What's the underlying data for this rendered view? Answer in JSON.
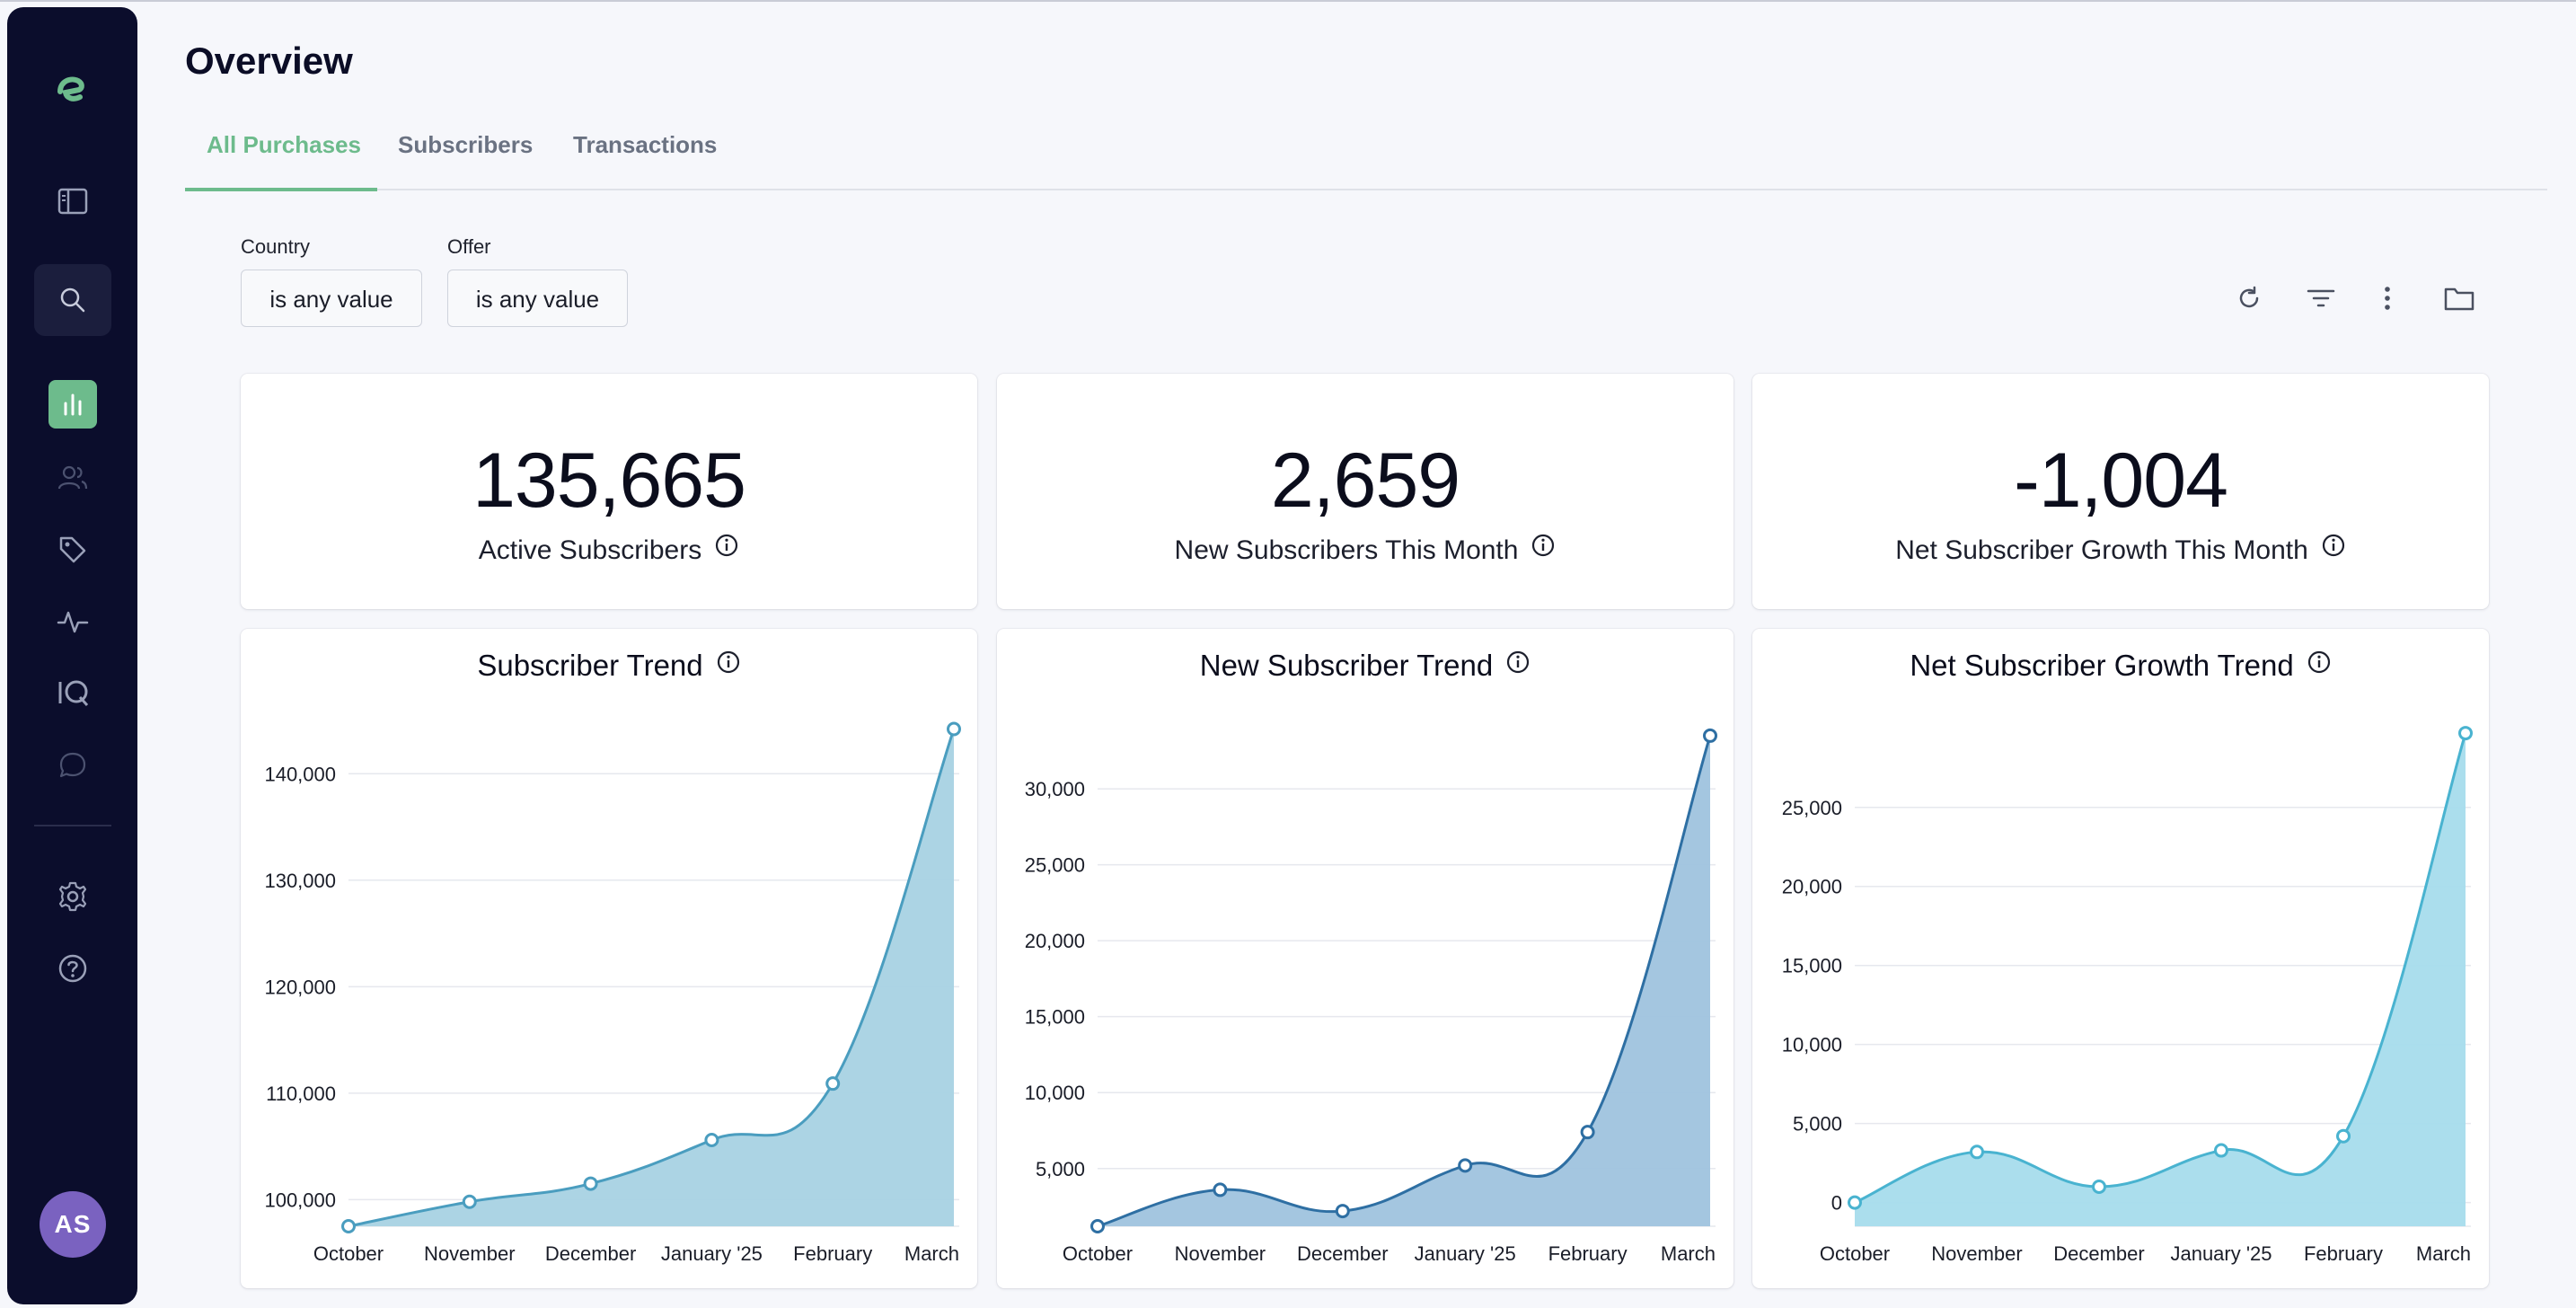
{
  "page": {
    "title": "Overview"
  },
  "tabs": [
    {
      "label": "All Purchases",
      "active": true
    },
    {
      "label": "Subscribers",
      "active": false
    },
    {
      "label": "Transactions",
      "active": false
    }
  ],
  "filters": [
    {
      "label": "Country",
      "value": "is any value"
    },
    {
      "label": "Offer",
      "value": "is any value"
    }
  ],
  "sidebar": {
    "logo": "e",
    "icons": [
      "sidebar-toggle-icon",
      "search-icon",
      "bar-chart-icon",
      "users-icon",
      "tag-icon",
      "pulse-icon",
      "iq-icon",
      "chat-icon",
      "gear-icon",
      "help-icon"
    ],
    "avatar_initials": "AS",
    "active_color": "#6dbb8c"
  },
  "kpis": [
    {
      "value": "135,665",
      "label": "Active Subscribers"
    },
    {
      "value": "2,659",
      "label": "New Subscribers This Month"
    },
    {
      "value": "-1,004",
      "label": "Net Subscriber Growth This Month"
    }
  ],
  "colors": {
    "accent": "#6dbb8c",
    "sidebar_bg": "#0b0d2c",
    "avatar": "#7a62c0"
  },
  "chart_data": [
    {
      "type": "area",
      "title": "Subscriber Trend",
      "categories": [
        "October",
        "November",
        "December",
        "January '25",
        "February",
        "March"
      ],
      "values": [
        97500,
        99800,
        101500,
        105600,
        110900,
        144200
      ],
      "y_ticks": [
        100000,
        110000,
        120000,
        130000,
        140000
      ],
      "y_tick_labels": [
        "100,000",
        "110,000",
        "120,000",
        "130,000",
        "140,000"
      ],
      "ylim": [
        97500,
        145000
      ],
      "color": "#4a9dbf",
      "fill": "#a8d2e3",
      "grid": true
    },
    {
      "type": "area",
      "title": "New Subscriber Trend",
      "categories": [
        "October",
        "November",
        "December",
        "January '25",
        "February",
        "March"
      ],
      "values": [
        1200,
        3600,
        2200,
        5200,
        7400,
        33500
      ],
      "y_ticks": [
        5000,
        10000,
        15000,
        20000,
        25000,
        30000
      ],
      "y_tick_labels": [
        "5,000",
        "10,000",
        "15,000",
        "20,000",
        "25,000",
        "30,000"
      ],
      "ylim": [
        1200,
        34500
      ],
      "color": "#2e6fa3",
      "fill": "#9fc3de",
      "grid": true
    },
    {
      "type": "area",
      "title": "Net Subscriber Growth Trend",
      "categories": [
        "October",
        "November",
        "December",
        "January '25",
        "February",
        "March"
      ],
      "values": [
        0,
        3200,
        1000,
        3300,
        4200,
        29700
      ],
      "y_ticks": [
        0,
        5000,
        10000,
        15000,
        20000,
        25000
      ],
      "y_tick_labels": [
        "0",
        "5,000",
        "10,000",
        "15,000",
        "20,000",
        "25,000"
      ],
      "ylim": [
        -1500,
        30500
      ],
      "color": "#49b3d0",
      "fill": "#a6dcec",
      "grid": true
    }
  ]
}
